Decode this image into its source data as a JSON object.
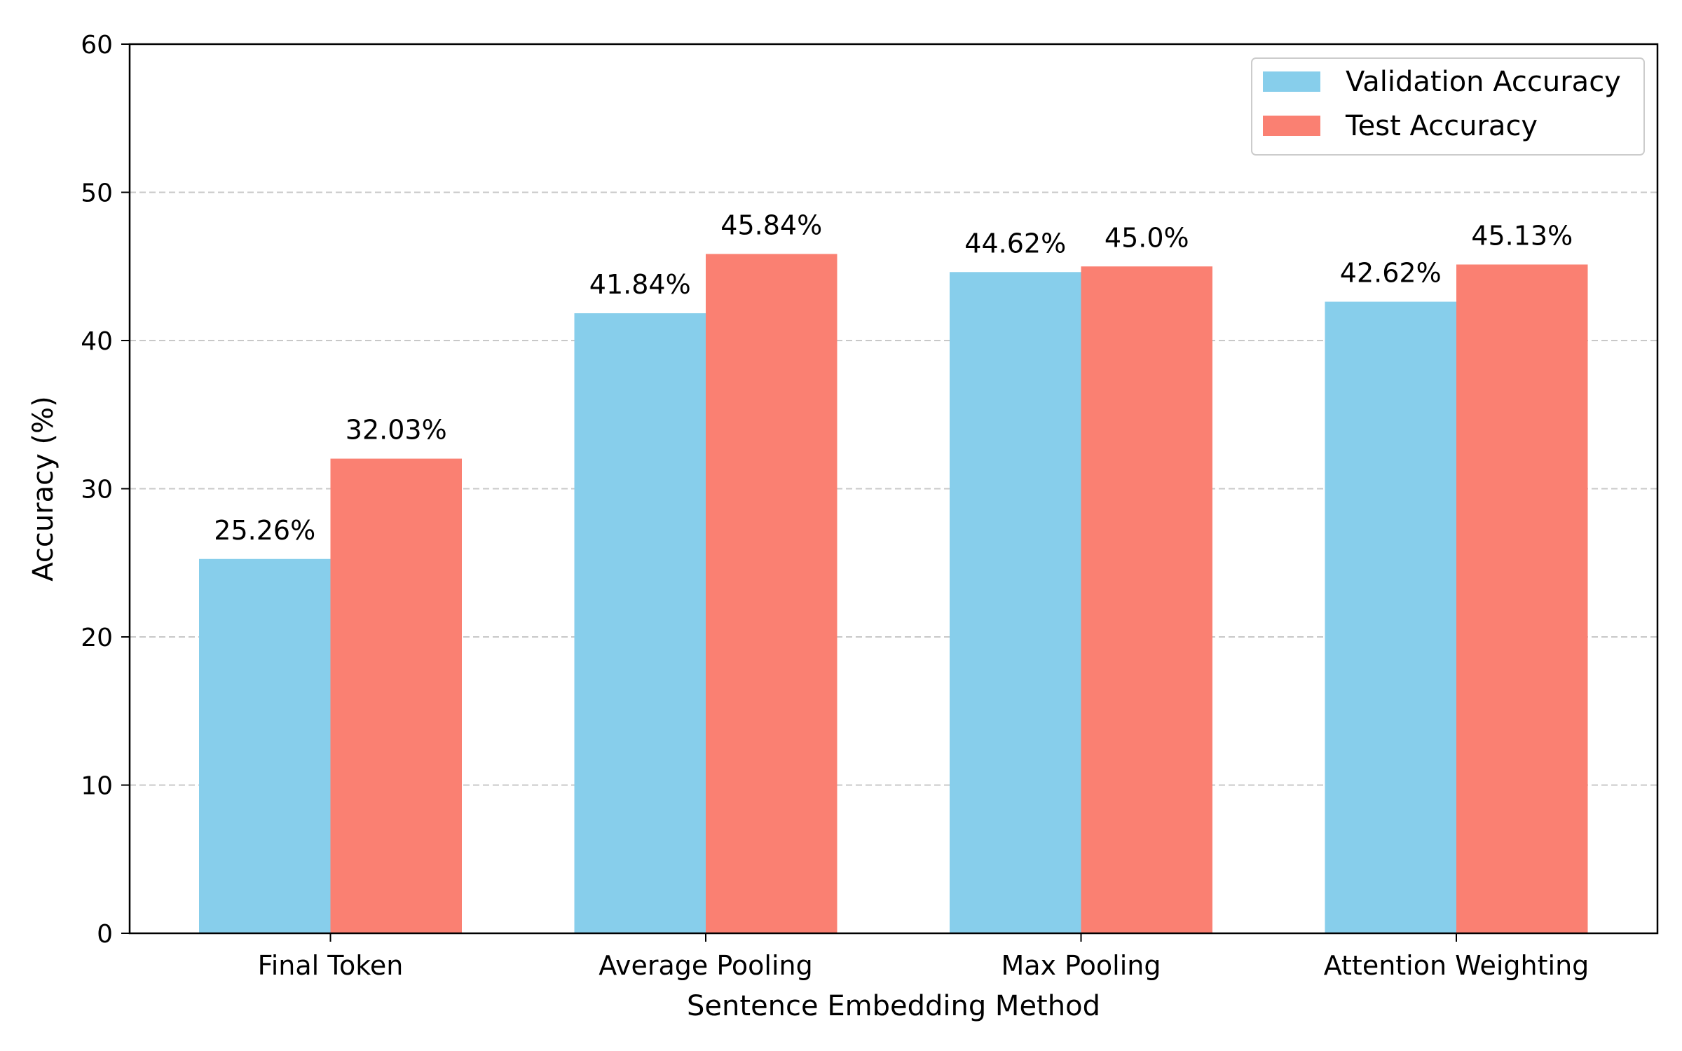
{
  "chart_data": {
    "type": "bar",
    "title": "",
    "xlabel": "Sentence Embedding Method",
    "ylabel": "Accuracy (%)",
    "categories": [
      "Final Token",
      "Average Pooling",
      "Max Pooling",
      "Attention Weighting"
    ],
    "series": [
      {
        "name": "Validation Accuracy",
        "color": "#87CEEB",
        "values": [
          25.26,
          41.84,
          44.62,
          42.62
        ],
        "labels": [
          "25.26%",
          "41.84%",
          "44.62%",
          "42.62%"
        ]
      },
      {
        "name": "Test Accuracy",
        "color": "#FA8072",
        "values": [
          32.03,
          45.84,
          45.0,
          45.13
        ],
        "labels": [
          "32.03%",
          "45.84%",
          "45.0%",
          "45.13%"
        ]
      }
    ],
    "ylim": [
      0,
      60
    ],
    "yticks": [
      0,
      10,
      20,
      30,
      40,
      50,
      60
    ],
    "grid": "horizontal-dashed",
    "legend_position": "top-right"
  }
}
